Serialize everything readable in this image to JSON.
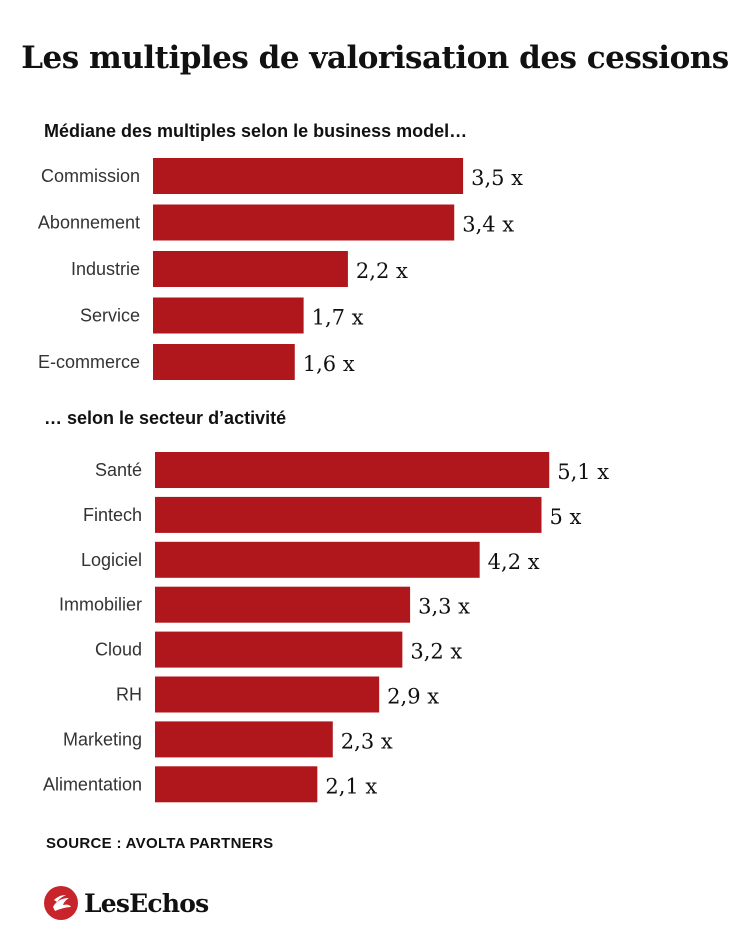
{
  "title": "Les multiples de valorisation des cessions",
  "source": "SOURCE : AVOLTA PARTNERS",
  "logo": {
    "text": "LesEchos",
    "icon": "les-echos-logo-icon"
  },
  "colors": {
    "bar": "#b0171c",
    "text": "#111111",
    "logo": "#c8242b"
  },
  "chart_data": [
    {
      "type": "bar",
      "orientation": "horizontal",
      "title": "Médiane des multiples selon le business model…",
      "categories": [
        "Commission",
        "Abonnement",
        "Industrie",
        "Service",
        "E-commerce"
      ],
      "values": [
        3.5,
        3.4,
        2.2,
        1.7,
        1.6
      ],
      "labels": [
        "3,5 x",
        "3,4 x",
        "2,2 x",
        "1,7 x",
        "1,6 x"
      ]
    },
    {
      "type": "bar",
      "orientation": "horizontal",
      "title": "… selon le secteur d’activité",
      "categories": [
        "Santé",
        "Fintech",
        "Logiciel",
        "Immobilier",
        "Cloud",
        "RH",
        "Marketing",
        "Alimentation"
      ],
      "values": [
        5.1,
        5,
        4.2,
        3.3,
        3.2,
        2.9,
        2.3,
        2.1
      ],
      "labels": [
        "5,1 x",
        "5 x",
        "4,2 x",
        "3,3 x",
        "3,2 x",
        "2,9 x",
        "2,3 x",
        "2,1 x"
      ]
    }
  ]
}
